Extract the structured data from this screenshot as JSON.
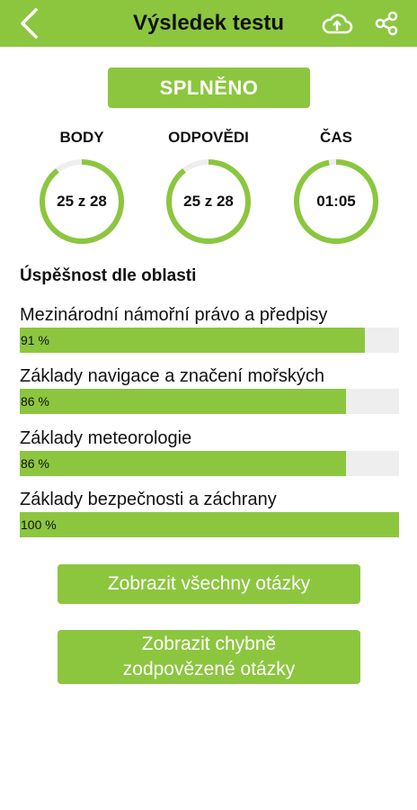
{
  "header": {
    "title": "Výsledek testu",
    "back_icon": "chevron-left-icon",
    "cloud_icon": "cloud-upload-icon",
    "share_icon": "share-icon"
  },
  "status": {
    "label": "SPLNĚNO"
  },
  "stats": {
    "body": {
      "label": "BODY",
      "value": "25 z 28",
      "fraction": 0.893
    },
    "odpovedi": {
      "label": "ODPOVĚDI",
      "value": "25 z 28",
      "fraction": 0.893
    },
    "cas": {
      "label": "ČAS",
      "value": "01:05",
      "fraction": 0.97
    }
  },
  "areas": {
    "title": "Úspěšnost dle oblasti",
    "items": [
      {
        "name": "Mezinárodní námořní právo a předpisy",
        "percent_label": "91 %",
        "percent": 91
      },
      {
        "name": "Základy navigace a značení mořských",
        "percent_label": "86 %",
        "percent": 86
      },
      {
        "name": "Základy meteorologie",
        "percent_label": "86 %",
        "percent": 86
      },
      {
        "name": "Základy bezpečnosti a záchrany",
        "percent_label": "100 %",
        "percent": 100
      }
    ]
  },
  "buttons": {
    "show_all": "Zobrazit všechny otázky",
    "show_wrong": "Zobrazit chybně zodpovězené otázky"
  },
  "colors": {
    "accent": "#8cc63f",
    "track": "#eeeeee"
  }
}
